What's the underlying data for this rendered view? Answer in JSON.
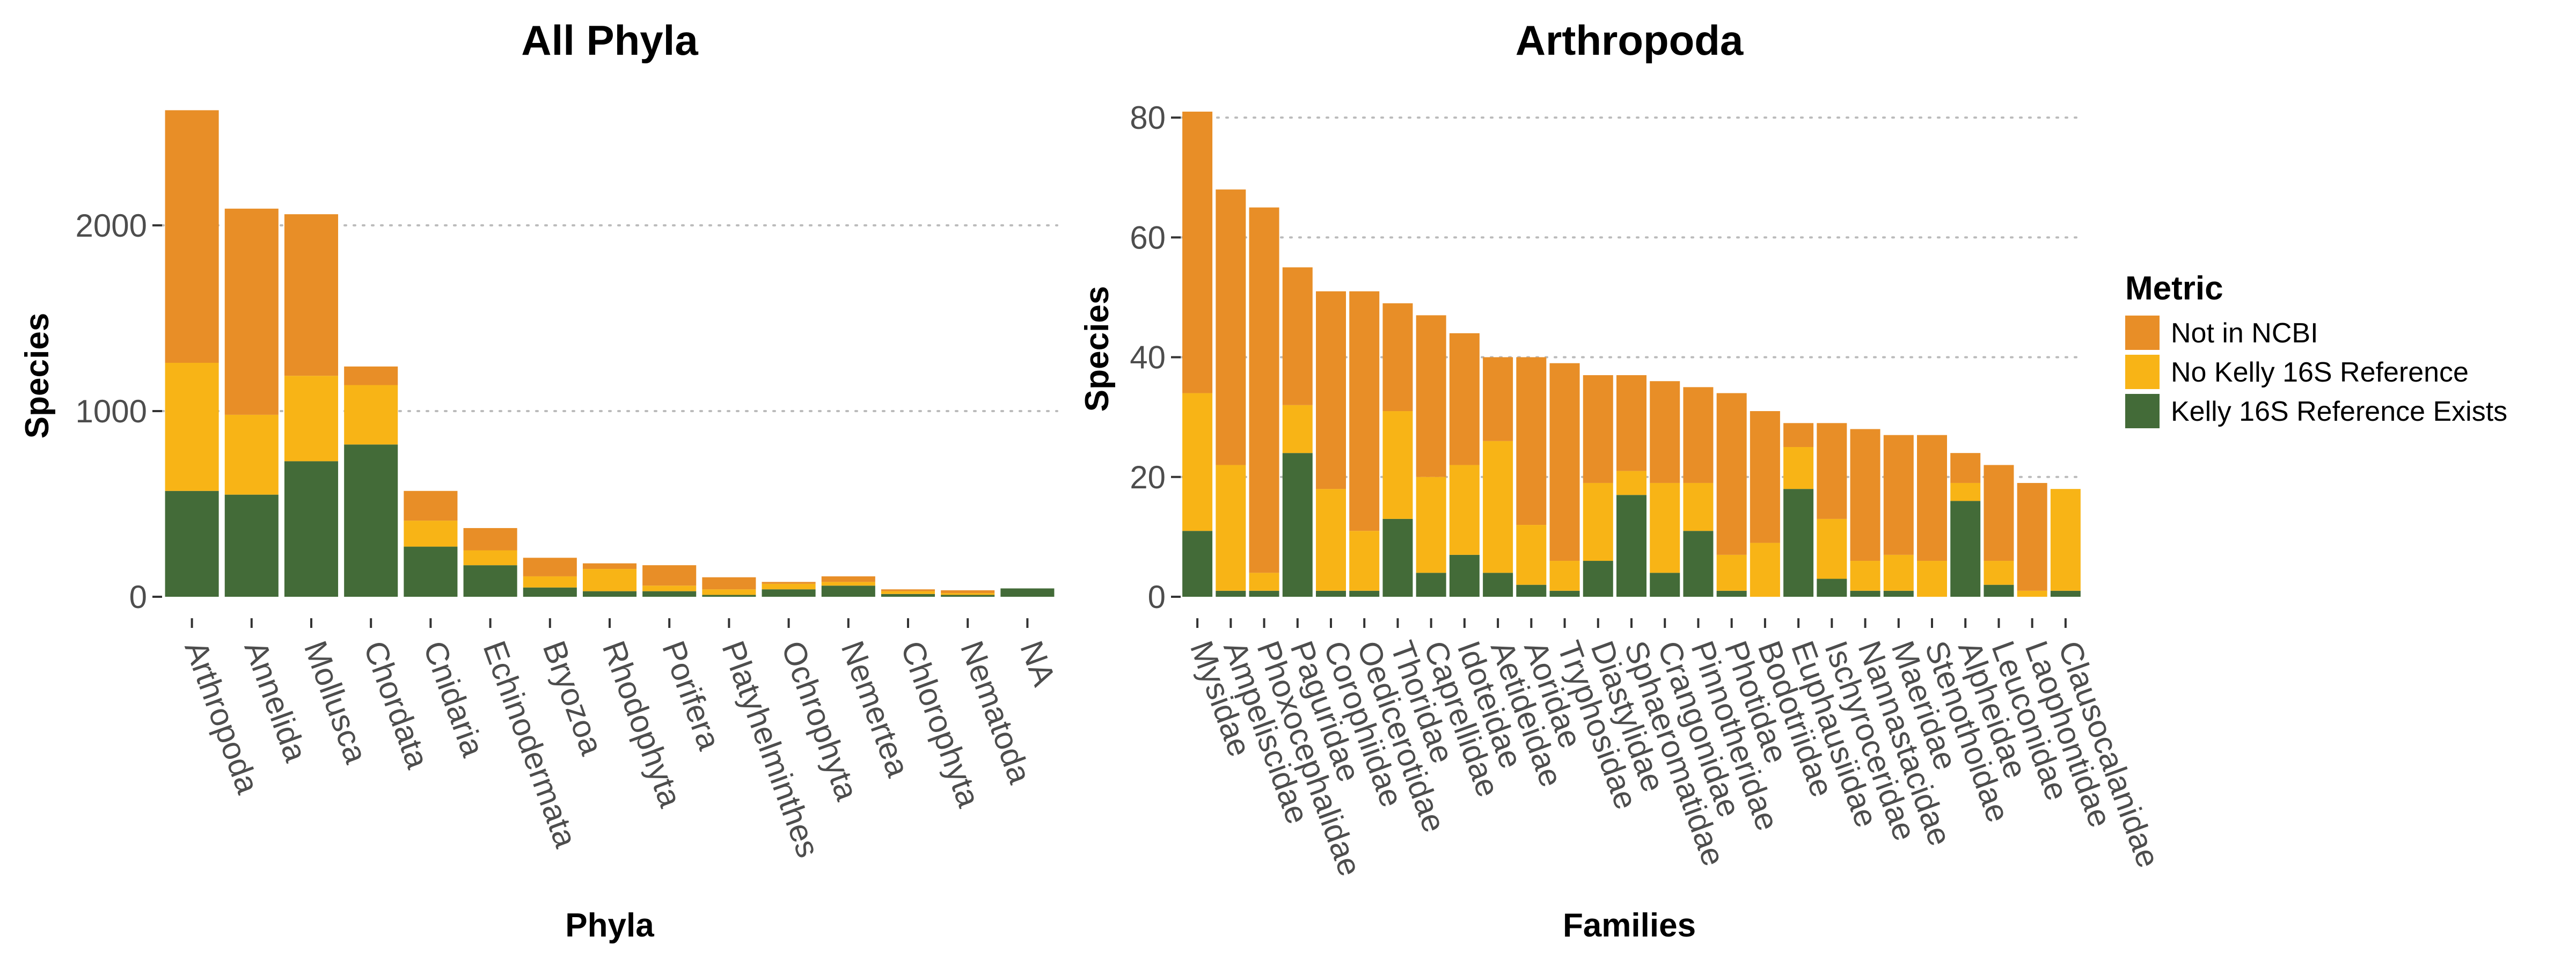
{
  "colors": {
    "not_in_ncbi": "#E88E27",
    "no_kelly": "#F8B416",
    "kelly_exists": "#436B38",
    "grid": "#bbbbbb",
    "tick": "#333333"
  },
  "legend": {
    "title": "Metric",
    "items": [
      {
        "label": "Not in NCBI",
        "color_key": "not_in_ncbi"
      },
      {
        "label": "No Kelly 16S Reference",
        "color_key": "no_kelly"
      },
      {
        "label": "Kelly 16S Reference Exists",
        "color_key": "kelly_exists"
      }
    ]
  },
  "chart_data": [
    {
      "type": "bar",
      "stacked": true,
      "title": "All Phyla",
      "xlabel": "Phyla",
      "ylabel": "Species",
      "ylim": [
        0,
        2650
      ],
      "yticks": [
        0,
        1000,
        2000
      ],
      "ytick_labels": [
        "0",
        "1000",
        "2000"
      ],
      "grid": "horizontal dotted",
      "categories": [
        "Arthropoda",
        "Annelida",
        "Mollusca",
        "Chordata",
        "Cnidaria",
        "Echinodermata",
        "Bryozoa",
        "Rhodophyta",
        "Porifera",
        "Platyhelminthes",
        "Ochrophyta",
        "Nemertea",
        "Chlorophyta",
        "Nematoda",
        "NA"
      ],
      "series": [
        {
          "name": "Kelly 16S Reference Exists",
          "color_key": "kelly_exists",
          "values": [
            570,
            550,
            730,
            820,
            270,
            170,
            50,
            30,
            30,
            10,
            40,
            60,
            15,
            10,
            45
          ]
        },
        {
          "name": "No Kelly 16S Reference",
          "color_key": "no_kelly",
          "values": [
            690,
            430,
            460,
            320,
            140,
            80,
            60,
            120,
            30,
            30,
            30,
            20,
            15,
            10,
            0
          ]
        },
        {
          "name": "Not in NCBI",
          "color_key": "not_in_ncbi",
          "values": [
            1360,
            1110,
            870,
            100,
            160,
            120,
            100,
            30,
            110,
            65,
            10,
            30,
            10,
            15,
            0
          ]
        }
      ]
    },
    {
      "type": "bar",
      "stacked": true,
      "title": "Arthropoda",
      "xlabel": "Families",
      "ylabel": "Species",
      "ylim": [
        0,
        81
      ],
      "yticks": [
        0,
        20,
        40,
        60,
        80
      ],
      "ytick_labels": [
        "0",
        "20",
        "40",
        "60",
        "80"
      ],
      "grid": "horizontal dotted",
      "categories": [
        "Mysidae",
        "Ampeliscidae",
        "Phoxocephalidae",
        "Paguridae",
        "Corophiidae",
        "Oedicerotidae",
        "Thoridae",
        "Caprellidae",
        "Idoteidae",
        "Aetideidae",
        "Aoridae",
        "Tryphosidae",
        "Diastylidae",
        "Sphaeromatidae",
        "Crangonidae",
        "Pinnotheridae",
        "Photidae",
        "Bodotriidae",
        "Euphausiidae",
        "Ischyroceridae",
        "Nannastacidae",
        "Maeridae",
        "Stenothoidae",
        "Alpheidae",
        "Leuconidae",
        "Laophontidae",
        "Clausocalanidae"
      ],
      "series": [
        {
          "name": "Kelly 16S Reference Exists",
          "color_key": "kelly_exists",
          "values": [
            11,
            1,
            1,
            24,
            1,
            1,
            13,
            4,
            7,
            4,
            2,
            1,
            6,
            17,
            4,
            11,
            1,
            0,
            18,
            3,
            1,
            1,
            0,
            16,
            2,
            0,
            1
          ]
        },
        {
          "name": "No Kelly 16S Reference",
          "color_key": "no_kelly",
          "values": [
            23,
            21,
            3,
            8,
            17,
            10,
            18,
            16,
            15,
            22,
            10,
            5,
            13,
            4,
            15,
            8,
            6,
            9,
            7,
            10,
            5,
            6,
            6,
            3,
            4,
            1,
            17
          ]
        },
        {
          "name": "Not in NCBI",
          "color_key": "not_in_ncbi",
          "values": [
            47,
            46,
            61,
            23,
            33,
            40,
            18,
            27,
            22,
            14,
            28,
            33,
            18,
            16,
            17,
            16,
            27,
            22,
            4,
            16,
            22,
            20,
            21,
            5,
            16,
            18,
            0
          ]
        }
      ]
    }
  ]
}
